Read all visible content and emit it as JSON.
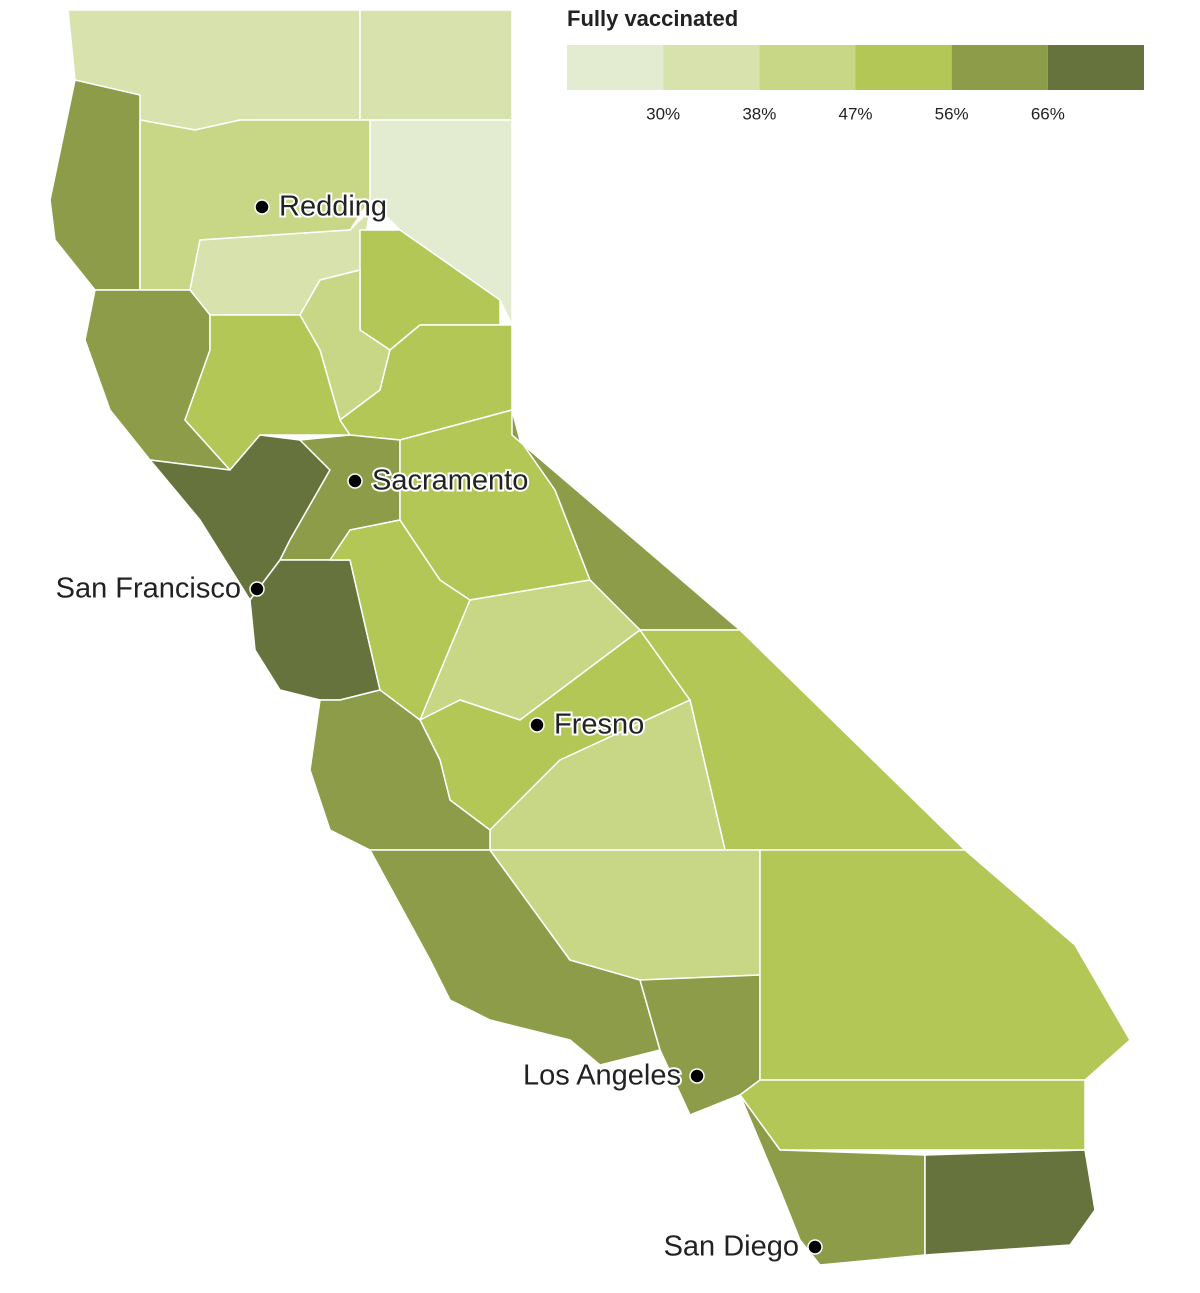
{
  "legend": {
    "title": "Fully vaccinated",
    "colors": [
      "#e3ecd0",
      "#d7e2ac",
      "#c8d785",
      "#b3c757",
      "#8c9c48",
      "#66733d"
    ],
    "ticks": [
      {
        "value": 30,
        "label": "30%"
      },
      {
        "value": 38,
        "label": "38%"
      },
      {
        "value": 47,
        "label": "47%"
      },
      {
        "value": 56,
        "label": "56%"
      },
      {
        "value": 66,
        "label": "66%"
      }
    ]
  },
  "cities": [
    "Redding",
    "Sacramento",
    "San Francisco",
    "Fresno",
    "Los Angeles",
    "San Diego"
  ]
}
